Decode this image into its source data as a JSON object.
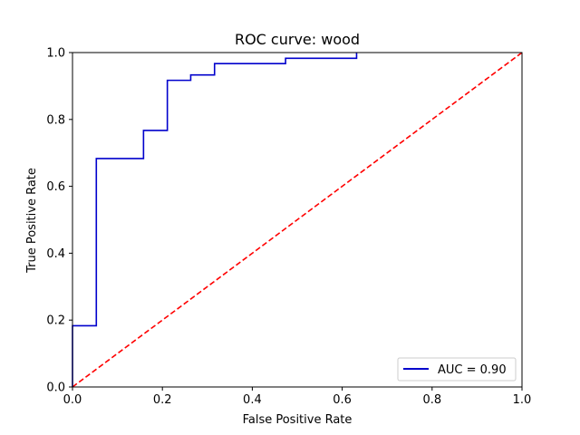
{
  "chart_data": {
    "type": "line",
    "title": "ROC curve: wood",
    "xlabel": "False Positive Rate",
    "ylabel": "True Positive Rate",
    "xlim": [
      0.0,
      1.0
    ],
    "ylim": [
      0.0,
      1.0
    ],
    "x_ticks": [
      "0.0",
      "0.2",
      "0.4",
      "0.6",
      "0.8",
      "1.0"
    ],
    "y_ticks": [
      "0.0",
      "0.2",
      "0.4",
      "0.6",
      "0.8",
      "1.0"
    ],
    "grid": false,
    "legend_position": "bottom-right",
    "series": [
      {
        "name": "AUC = 0.90",
        "color": "#0000cc",
        "style": "step",
        "x": [
          0.0,
          0.0,
          0.053,
          0.053,
          0.158,
          0.158,
          0.211,
          0.211,
          0.263,
          0.263,
          0.316,
          0.316,
          0.474,
          0.474,
          0.632,
          0.632
        ],
        "y": [
          0.0,
          0.183,
          0.183,
          0.683,
          0.683,
          0.767,
          0.767,
          0.917,
          0.917,
          0.933,
          0.933,
          0.967,
          0.967,
          0.983,
          0.983,
          1.0
        ]
      },
      {
        "color": "#ff0000",
        "style": "dashed",
        "x": [
          0.0,
          1.0
        ],
        "y": [
          0.0,
          1.0
        ]
      }
    ]
  }
}
